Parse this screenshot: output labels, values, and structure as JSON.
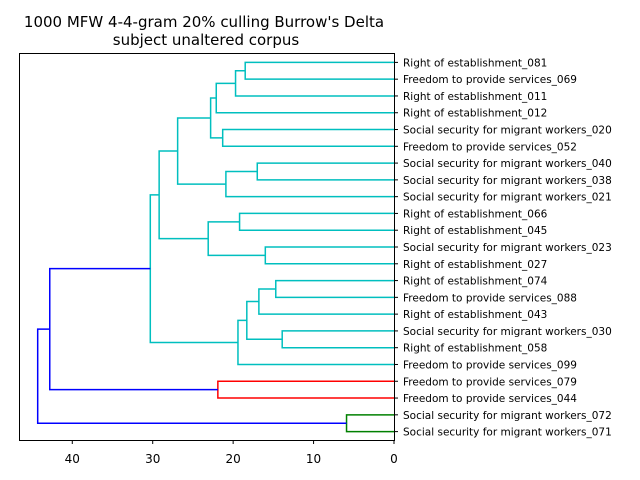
{
  "chart_data": {
    "type": "dendrogram",
    "title": [
      "1000 MFW 4-4-gram 20% culling Burrow's Delta",
      "subject unaltered corpus"
    ],
    "xlabel": "",
    "ylabel": "",
    "xlim": [
      46.5,
      0
    ],
    "xticks": [
      40,
      30,
      20,
      10,
      0
    ],
    "grid": false,
    "leaves": [
      "Right of establishment_081",
      "Freedom to provide services_069",
      "Right of establishment_011",
      "Right of establishment_012",
      "Social security for migrant workers_020",
      "Freedom to provide services_052",
      "Social security for migrant workers_040",
      "Social security for migrant workers_038",
      "Social security for migrant workers_021",
      "Right of establishment_066",
      "Right of establishment_045",
      "Social security for migrant workers_023",
      "Right of establishment_027",
      "Right of establishment_074",
      "Freedom to provide services_088",
      "Right of establishment_043",
      "Social security for migrant workers_030",
      "Right of establishment_058",
      "Freedom to provide services_099",
      "Freedom to provide services_079",
      "Freedom to provide services_044",
      "Social security for migrant workers_072",
      "Social security for migrant workers_071"
    ],
    "colors": {
      "cyan": "#00bfbf",
      "red": "#ff0000",
      "green": "#008000",
      "blue": "#0000ff"
    },
    "merges": [
      {
        "a": "L0",
        "b": "L1",
        "height": 18.5,
        "color": "cyan"
      },
      {
        "a": "N0",
        "b": "L2",
        "height": 19.7,
        "color": "cyan"
      },
      {
        "a": "N1",
        "b": "L3",
        "height": 22.1,
        "color": "cyan"
      },
      {
        "a": "L4",
        "b": "L5",
        "height": 21.3,
        "color": "cyan"
      },
      {
        "a": "N2",
        "b": "N3",
        "height": 22.8,
        "color": "cyan"
      },
      {
        "a": "L6",
        "b": "L7",
        "height": 17.0,
        "color": "cyan"
      },
      {
        "a": "N5",
        "b": "L8",
        "height": 20.9,
        "color": "cyan"
      },
      {
        "a": "N4",
        "b": "N6",
        "height": 26.9,
        "color": "cyan"
      },
      {
        "a": "L9",
        "b": "L10",
        "height": 19.2,
        "color": "cyan"
      },
      {
        "a": "L11",
        "b": "L12",
        "height": 16.0,
        "color": "cyan"
      },
      {
        "a": "N8",
        "b": "N9",
        "height": 23.1,
        "color": "cyan"
      },
      {
        "a": "N7",
        "b": "N10",
        "height": 29.2,
        "color": "cyan"
      },
      {
        "a": "L13",
        "b": "L14",
        "height": 14.7,
        "color": "cyan"
      },
      {
        "a": "N12",
        "b": "L15",
        "height": 16.8,
        "color": "cyan"
      },
      {
        "a": "L16",
        "b": "L17",
        "height": 13.9,
        "color": "cyan"
      },
      {
        "a": "N13",
        "b": "N14",
        "height": 18.3,
        "color": "cyan"
      },
      {
        "a": "N15",
        "b": "L18",
        "height": 19.4,
        "color": "cyan"
      },
      {
        "a": "N11",
        "b": "N16",
        "height": 30.3,
        "color": "cyan"
      },
      {
        "a": "L19",
        "b": "L20",
        "height": 21.9,
        "color": "red"
      },
      {
        "a": "N17",
        "b": "N18",
        "height": 42.8,
        "color": "blue"
      },
      {
        "a": "L21",
        "b": "L22",
        "height": 5.9,
        "color": "green"
      },
      {
        "a": "N19",
        "b": "N20",
        "height": 44.3,
        "color": "blue"
      }
    ]
  }
}
